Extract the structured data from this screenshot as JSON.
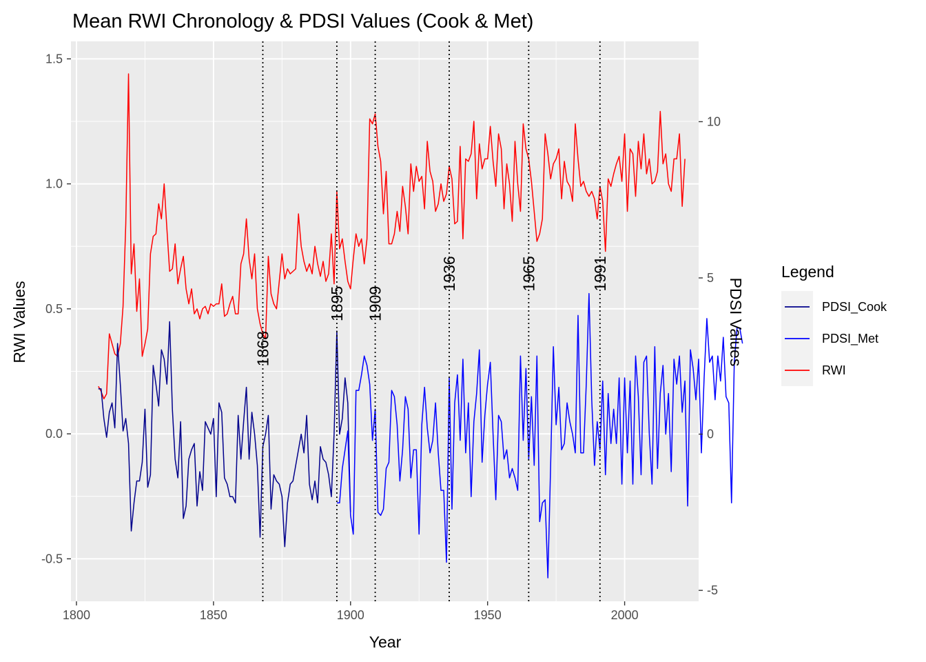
{
  "chart_data": {
    "type": "line",
    "title": "Mean RWI Chronology & PDSI Values (Cook & Met)",
    "xlabel": "Year",
    "ylabel": "RWI Values",
    "y2label": "PDSI Values",
    "xlim": [
      1798,
      2027
    ],
    "ylim": [
      -0.67,
      1.57
    ],
    "y2lim": [
      -5.35,
      12.57
    ],
    "x_ticks": [
      1800,
      1850,
      1900,
      1950,
      2000
    ],
    "x_tick_labels": [
      "1800",
      "1850",
      "1900",
      "1950",
      "2000"
    ],
    "y_ticks": [
      -0.5,
      0.0,
      0.5,
      1.0,
      1.5
    ],
    "y_tick_labels": [
      "-0.5",
      "0.0",
      "0.5",
      "1.0",
      "1.5"
    ],
    "y2_ticks": [
      -5,
      0,
      5,
      10
    ],
    "y2_tick_labels": [
      "-5",
      "0",
      "5",
      "10"
    ],
    "grid": true,
    "legend": {
      "title": "Legend",
      "position": "right",
      "entries": [
        {
          "name": "PDSI_Cook",
          "color": "#00008B"
        },
        {
          "name": "PDSI_Met",
          "color": "#0000FF"
        },
        {
          "name": "RWI",
          "color": "#FF0000"
        }
      ]
    },
    "event_lines": [
      {
        "year": 1868,
        "label": "1868",
        "label_y": 0.27
      },
      {
        "year": 1895,
        "label": "1895",
        "label_y": 0.45
      },
      {
        "year": 1909,
        "label": "1909",
        "label_y": 0.45
      },
      {
        "year": 1936,
        "label": "1936",
        "label_y": 0.57
      },
      {
        "year": 1965,
        "label": "1965",
        "label_y": 0.57
      },
      {
        "year": 1991,
        "label": "1991",
        "label_y": 0.57
      }
    ],
    "series": [
      {
        "name": "RWI",
        "color": "#FF0000",
        "axis": "left",
        "x_start": 1808,
        "values": [
          0.19,
          0.17,
          0.14,
          0.16,
          0.4,
          0.36,
          0.32,
          0.31,
          0.36,
          0.51,
          0.84,
          1.44,
          0.64,
          0.76,
          0.49,
          0.62,
          0.31,
          0.36,
          0.42,
          0.72,
          0.79,
          0.8,
          0.92,
          0.86,
          1.0,
          0.82,
          0.65,
          0.66,
          0.76,
          0.6,
          0.66,
          0.71,
          0.58,
          0.52,
          0.58,
          0.48,
          0.5,
          0.46,
          0.5,
          0.51,
          0.48,
          0.52,
          0.51,
          0.52,
          0.52,
          0.6,
          0.47,
          0.48,
          0.52,
          0.55,
          0.48,
          0.48,
          0.68,
          0.72,
          0.86,
          0.7,
          0.62,
          0.72,
          0.5,
          0.44,
          0.4,
          0.38,
          0.71,
          0.56,
          0.52,
          0.5,
          0.61,
          0.72,
          0.62,
          0.66,
          0.64,
          0.65,
          0.66,
          0.88,
          0.75,
          0.69,
          0.65,
          0.68,
          0.64,
          0.75,
          0.68,
          0.63,
          0.69,
          0.61,
          0.64,
          0.8,
          0.6,
          0.97,
          0.74,
          0.78,
          0.69,
          0.61,
          0.58,
          0.7,
          0.8,
          0.75,
          0.78,
          0.68,
          0.78,
          1.26,
          1.24,
          1.28,
          1.15,
          1.09,
          0.88,
          1.05,
          0.76,
          0.76,
          0.8,
          0.89,
          0.81,
          0.99,
          0.91,
          0.8,
          1.08,
          0.97,
          1.07,
          1.01,
          1.03,
          0.9,
          1.17,
          1.05,
          1.01,
          0.89,
          0.92,
          1.0,
          0.93,
          0.96,
          1.07,
          1.02,
          0.84,
          0.85,
          1.15,
          0.78,
          1.1,
          1.09,
          1.12,
          1.25,
          0.94,
          1.16,
          1.06,
          1.1,
          1.1,
          1.23,
          1.09,
          0.99,
          1.2,
          1.14,
          0.9,
          1.08,
          1.0,
          0.85,
          1.17,
          1.0,
          0.89,
          1.24,
          1.14,
          1.1,
          1.01,
          0.89,
          0.77,
          0.8,
          0.86,
          1.2,
          1.12,
          1.02,
          1.08,
          1.1,
          1.14,
          0.94,
          1.09,
          1.01,
          0.99,
          0.93,
          1.24,
          1.1,
          0.99,
          1.01,
          0.97,
          0.95,
          0.97,
          0.94,
          0.86,
          0.99,
          0.93,
          0.73,
          1.02,
          0.99,
          1.04,
          1.08,
          1.11,
          1.01,
          1.2,
          0.89,
          1.14,
          1.12,
          0.95,
          1.17,
          1.06,
          1.2,
          1.04,
          1.1,
          1.0,
          1.01,
          1.05,
          1.29,
          1.08,
          1.12,
          1.0,
          0.97,
          1.1,
          1.1,
          1.2,
          0.91,
          1.1
        ]
      },
      {
        "name": "PDSI_Cook",
        "color": "#00008B",
        "axis": "right",
        "x_start": 1808,
        "values": [
          1.45,
          1.45,
          0.5,
          -0.1,
          0.7,
          1.0,
          0.2,
          2.9,
          1.6,
          0.1,
          0.5,
          -0.3,
          -3.1,
          -2.2,
          -1.5,
          -1.5,
          -0.9,
          0.8,
          -1.7,
          -1.3,
          2.2,
          1.6,
          0.9,
          2.7,
          2.4,
          1.6,
          3.6,
          0.8,
          -0.8,
          -1.4,
          0.4,
          -2.7,
          -2.3,
          -0.8,
          -0.5,
          -0.3,
          -2.3,
          -1.2,
          -1.8,
          0.4,
          0.2,
          0.0,
          0.5,
          -2.0,
          1.0,
          0.7,
          -1.4,
          -1.6,
          -2.0,
          -2.0,
          -2.2,
          0.6,
          -0.8,
          0.4,
          1.5,
          -0.8,
          0.7,
          0.0,
          -1.0,
          -3.3,
          -0.4,
          0.0,
          0.6,
          -2.4,
          -1.3,
          -1.5,
          -1.6,
          -2.0,
          -3.6,
          -2.2,
          -1.6,
          -1.5,
          -1.0,
          -0.5,
          0.0,
          -0.6,
          0.6,
          -1.6,
          -2.1,
          -1.5,
          -2.2,
          -0.4,
          -0.8,
          -0.9,
          -1.3,
          -2.0,
          0.0,
          3.3,
          0.0,
          0.5,
          1.8,
          1.0,
          -2.5
        ]
      },
      {
        "name": "PDSI_Met",
        "color": "#0000FF",
        "axis": "right",
        "x_start": 1895,
        "values": [
          -2.2,
          -2.2,
          -1.1,
          -0.5,
          0.1,
          -2.6,
          -3.2,
          1.4,
          1.4,
          1.9,
          2.5,
          2.2,
          1.6,
          -0.2,
          0.8,
          -2.5,
          -2.6,
          -2.4,
          -1.1,
          -0.9,
          1.4,
          1.2,
          0.3,
          -1.5,
          -0.5,
          1.2,
          0.8,
          -1.4,
          -0.5,
          -0.5,
          -3.2,
          0.3,
          1.5,
          0.2,
          -0.6,
          -0.2,
          1.0,
          -0.6,
          -1.8,
          -1.8,
          -4.1,
          1.8,
          -2.4,
          1.0,
          1.9,
          -0.2,
          2.4,
          -0.6,
          1.0,
          -2.0,
          0.4,
          1.3,
          2.7,
          -0.9,
          0.6,
          1.6,
          2.3,
          0.0,
          -2.1,
          0.6,
          0.4,
          -0.8,
          -0.5,
          -1.4,
          -1.1,
          -1.4,
          -1.8,
          2.5,
          -0.2,
          2.1,
          -0.8,
          1.2,
          -1.0,
          2.5,
          -2.8,
          -2.2,
          -2.1,
          -4.6,
          -1.0,
          2.8,
          0.3,
          1.5,
          -0.5,
          -0.3,
          1.0,
          0.4,
          0.0,
          -0.6,
          3.8,
          -0.6,
          -0.6,
          1.6,
          4.5,
          1.1,
          -1.0,
          0.4,
          -0.5,
          1.7,
          -1.3,
          1.3,
          -0.3,
          0.8,
          -0.3,
          1.8,
          -1.6,
          1.8,
          -0.6,
          1.7,
          -1.6,
          2.5,
          1.2,
          -1.3,
          2.3,
          2.5,
          0.0,
          -1.6,
          2.8,
          -1.1,
          1.3,
          2.2,
          0.0,
          1.3,
          -1.2,
          2.4,
          1.6,
          2.5,
          0.7,
          1.7,
          -2.3,
          2.7,
          2.1,
          1.1,
          2.4,
          -0.6,
          1.8,
          3.7,
          2.3,
          2.5,
          1.1,
          2.5,
          1.7,
          3.1,
          1.2,
          1.0,
          -2.2,
          2.3,
          3.4,
          3.4,
          2.9
        ]
      }
    ]
  }
}
